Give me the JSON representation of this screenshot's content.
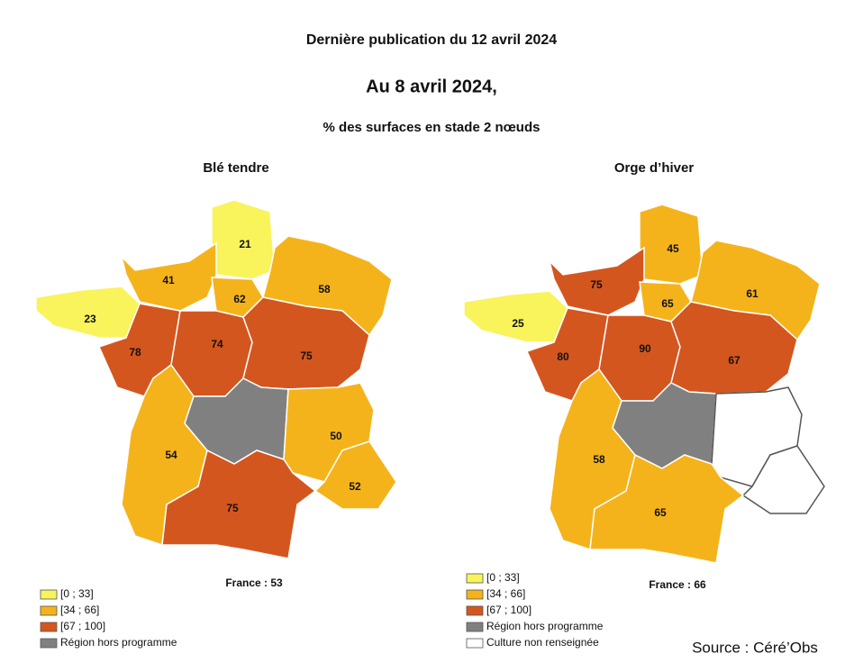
{
  "header": {
    "publication": "Dernière publication du 12 avril 2024",
    "date": "Au 8 avril 2024,",
    "subtitle": "% des surfaces en stade 2 nœuds"
  },
  "maps": [
    {
      "title": "Blé tendre",
      "france": "France : 53",
      "regions": [
        {
          "value": 21,
          "color": "#f9f35c"
        },
        {
          "value": 41,
          "color": "#f5b31b"
        },
        {
          "value": 62,
          "color": "#f5b31b"
        },
        {
          "value": 58,
          "color": "#f5b31b"
        },
        {
          "value": 23,
          "color": "#f9f35c"
        },
        {
          "value": 78,
          "color": "#d4561f"
        },
        {
          "value": 74,
          "color": "#d4561f"
        },
        {
          "value": 75,
          "color": "#d4561f"
        },
        {
          "value": 54,
          "color": "#f5b31b"
        },
        {
          "color": "#808080"
        },
        {
          "value": 50,
          "color": "#f5b31b"
        },
        {
          "value": 52,
          "color": "#f5b31b"
        },
        {
          "value": 75,
          "color": "#d4561f"
        }
      ],
      "legend": [
        {
          "label": "[0 ; 33]",
          "color": "#f9f35c"
        },
        {
          "label": "[34 ; 66]",
          "color": "#f5b31b"
        },
        {
          "label": "[67 ; 100]",
          "color": "#d4561f"
        },
        {
          "label": "Région hors programme",
          "color": "#808080"
        }
      ]
    },
    {
      "title": "Orge d’hiver",
      "france": "France : 66",
      "regions": [
        {
          "value": 45,
          "color": "#f5b31b"
        },
        {
          "value": 75,
          "color": "#d4561f"
        },
        {
          "value": 65,
          "color": "#f5b31b"
        },
        {
          "value": 61,
          "color": "#f5b31b"
        },
        {
          "value": 25,
          "color": "#f9f35c"
        },
        {
          "value": 80,
          "color": "#d4561f"
        },
        {
          "value": 90,
          "color": "#d4561f"
        },
        {
          "value": 67,
          "color": "#d4561f"
        },
        {
          "value": 58,
          "color": "#f5b31b"
        },
        {
          "color": "#808080"
        },
        {
          "color": "#ffffff"
        },
        {
          "color": "#ffffff"
        },
        {
          "value": 65,
          "color": "#f5b31b"
        }
      ],
      "legend": [
        {
          "label": "[0 ; 33]",
          "color": "#f9f35c"
        },
        {
          "label": "[34 ; 66]",
          "color": "#f5b31b"
        },
        {
          "label": "[67 ; 100]",
          "color": "#d4561f"
        },
        {
          "label": "Région hors programme",
          "color": "#808080"
        },
        {
          "label": "Culture non renseignée",
          "color": "#ffffff"
        }
      ]
    }
  ],
  "source": "Source : Céré’Obs"
}
